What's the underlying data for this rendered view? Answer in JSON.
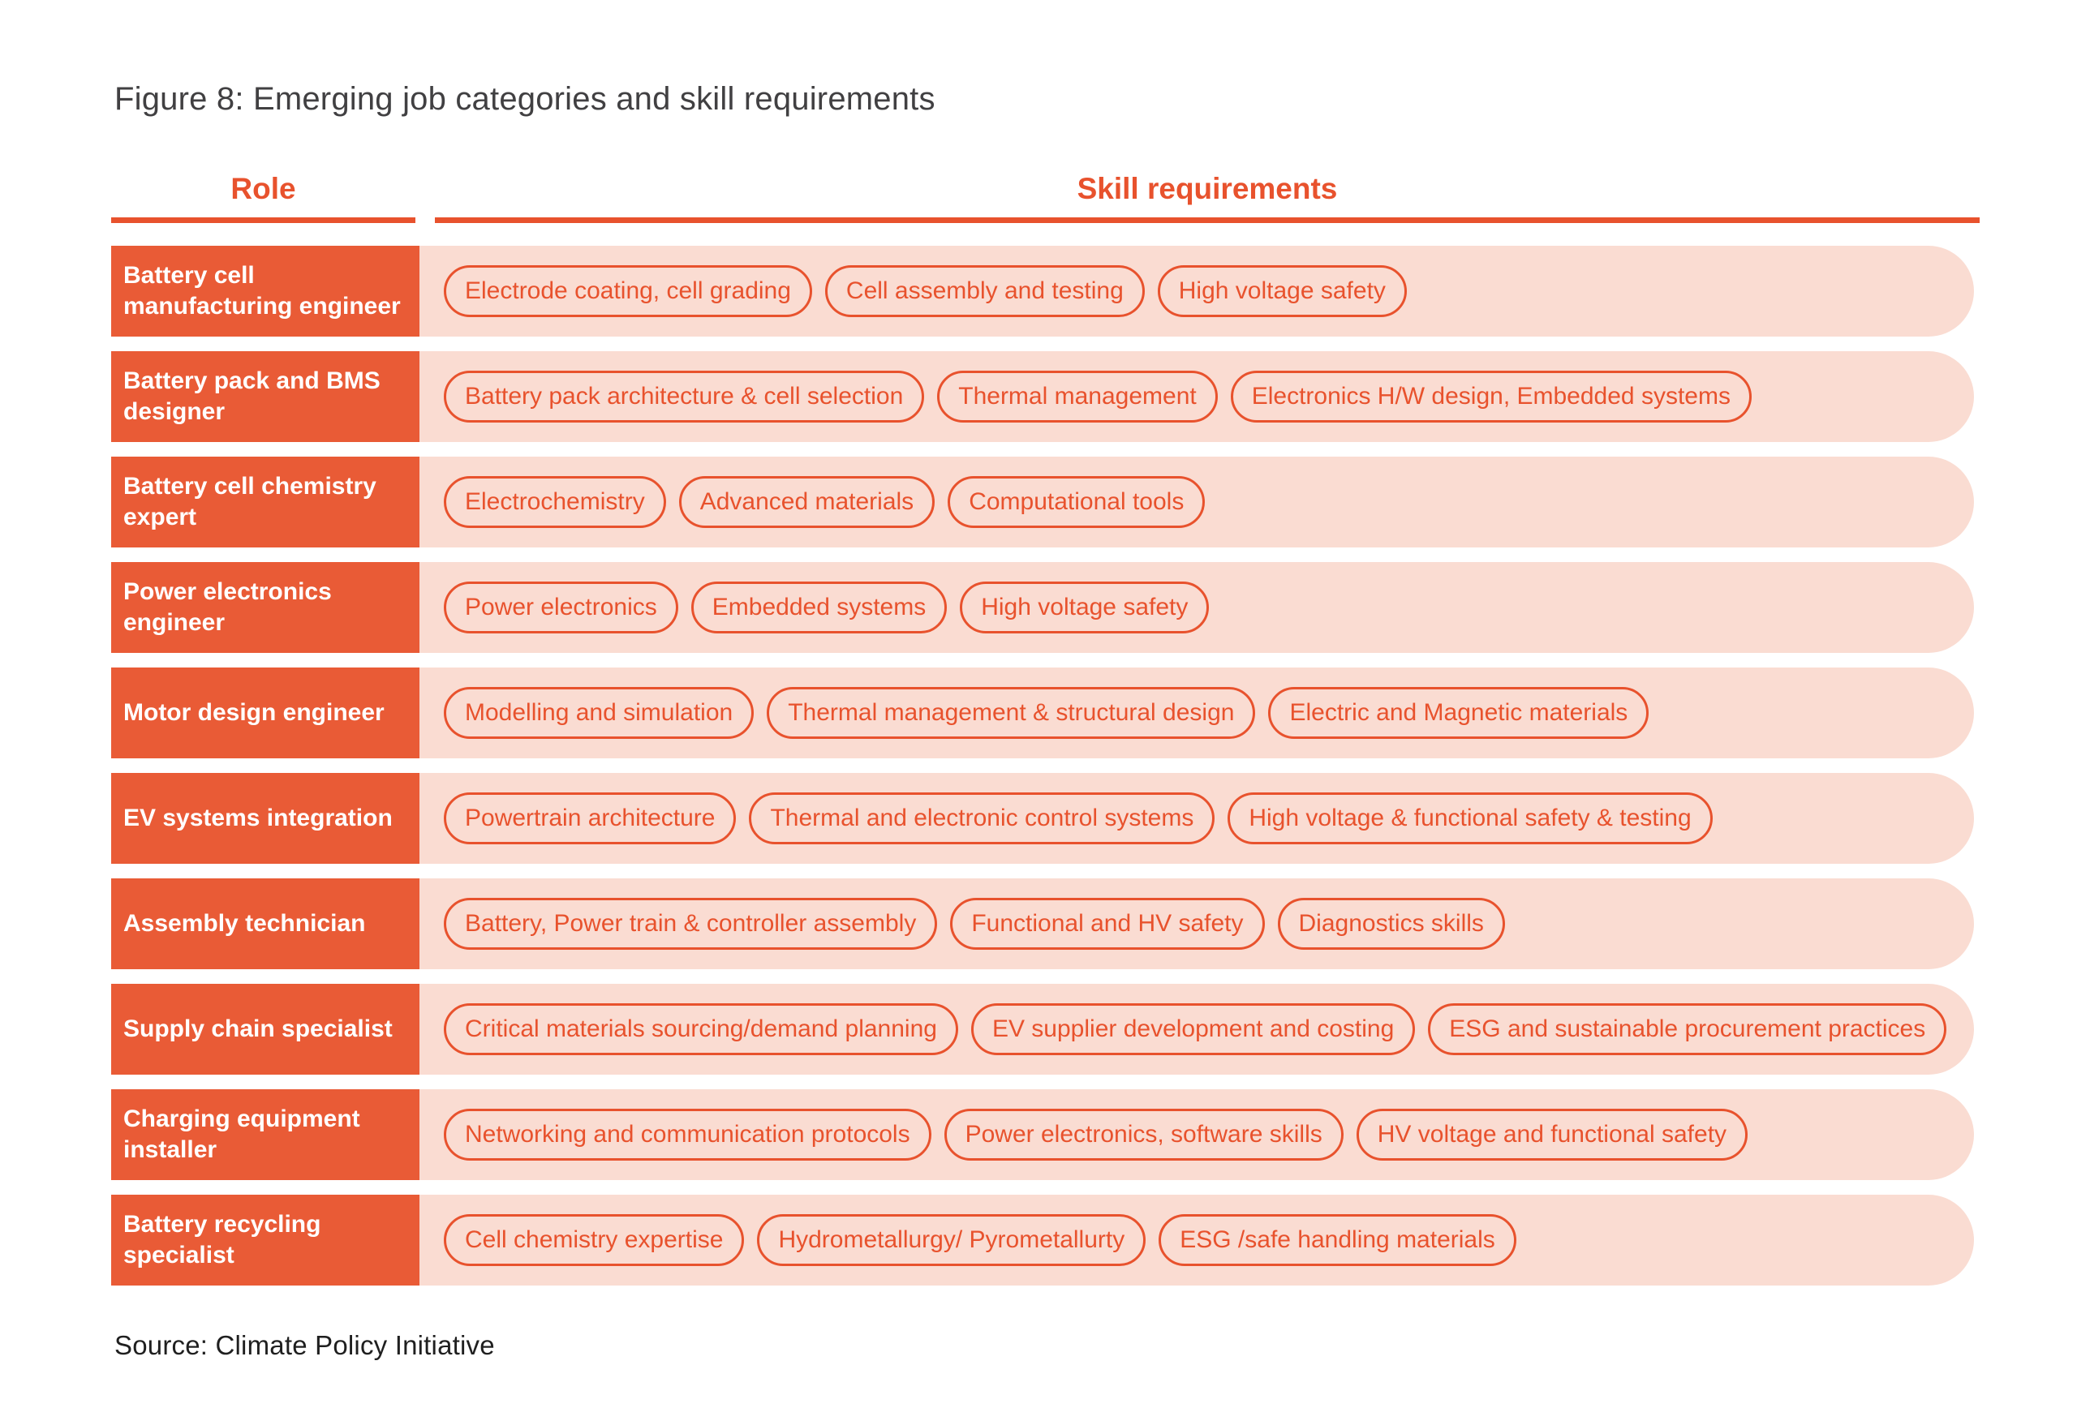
{
  "figure": {
    "title": "Figure 8: Emerging job categories and skill requirements",
    "source": "Source: Climate Policy Initiative"
  },
  "header": {
    "role_label": "Role",
    "skills_label": "Skill requirements"
  },
  "colors": {
    "accent_orange": "#E8522D",
    "role_box_orange": "#E95B36",
    "row_background_pink": "#FADCD2",
    "title_text": "#414042",
    "source_text": "#1F1F1F"
  },
  "table": {
    "rows": [
      {
        "role": "Battery cell manufacturing engineer",
        "skills": [
          "Electrode coating, cell grading",
          "Cell assembly and testing",
          "High voltage safety"
        ]
      },
      {
        "role": "Battery pack and BMS designer",
        "skills": [
          "Battery pack architecture & cell selection",
          "Thermal management",
          "Electronics H/W design, Embedded systems"
        ]
      },
      {
        "role": "Battery cell chemistry expert",
        "skills": [
          "Electrochemistry",
          "Advanced materials",
          "Computational tools"
        ]
      },
      {
        "role": "Power electronics engineer",
        "skills": [
          "Power electronics",
          "Embedded systems",
          "High voltage safety"
        ]
      },
      {
        "role": "Motor design engineer",
        "skills": [
          "Modelling and simulation",
          "Thermal management & structural design",
          "Electric and Magnetic materials"
        ]
      },
      {
        "role": "EV systems integration",
        "skills": [
          "Powertrain architecture",
          "Thermal and electronic control systems",
          "High voltage & functional safety & testing"
        ]
      },
      {
        "role": "Assembly technician",
        "skills": [
          "Battery, Power train & controller assembly",
          "Functional and HV safety",
          "Diagnostics skills"
        ]
      },
      {
        "role": "Supply chain specialist",
        "skills": [
          "Critical materials sourcing/demand planning",
          "EV supplier development and costing",
          "ESG and sustainable procurement practices"
        ]
      },
      {
        "role": "Charging equipment installer",
        "skills": [
          "Networking and communication protocols",
          "Power electronics, software skills",
          "HV voltage and functional safety"
        ]
      },
      {
        "role": "Battery recycling specialist",
        "skills": [
          "Cell chemistry expertise",
          "Hydrometallurgy/ Pyrometallurty",
          "ESG /safe handling materials"
        ]
      }
    ]
  },
  "chart_data": {
    "type": "table",
    "title": "Figure 8: Emerging job categories and skill requirements",
    "columns": [
      "Role",
      "Skill requirements"
    ],
    "rows": [
      [
        "Battery cell manufacturing engineer",
        "Electrode coating, cell grading | Cell assembly and testing | High voltage safety"
      ],
      [
        "Battery pack and BMS designer",
        "Battery pack architecture & cell selection | Thermal management | Electronics H/W design, Embedded systems"
      ],
      [
        "Battery cell chemistry expert",
        "Electrochemistry | Advanced materials | Computational tools"
      ],
      [
        "Power electronics engineer",
        "Power electronics | Embedded systems | High voltage safety"
      ],
      [
        "Motor design engineer",
        "Modelling and simulation | Thermal management & structural design | Electric and Magnetic materials"
      ],
      [
        "EV systems integration",
        "Powertrain architecture | Thermal and electronic control systems | High voltage & functional safety & testing"
      ],
      [
        "Assembly technician",
        "Battery, Power train & controller assembly | Functional and HV safety | Diagnostics skills"
      ],
      [
        "Supply chain specialist",
        "Critical materials sourcing/demand planning | EV supplier development and costing | ESG and sustainable procurement practices"
      ],
      [
        "Charging equipment installer",
        "Networking and communication protocols | Power electronics, software skills | HV voltage and functional safety"
      ],
      [
        "Battery recycling specialist",
        "Cell chemistry expertise | Hydrometallurgy/ Pyrometallurty | ESG /safe handling materials"
      ]
    ],
    "source": "Source: Climate Policy Initiative",
    "legend_position": "none",
    "grid": false
  }
}
